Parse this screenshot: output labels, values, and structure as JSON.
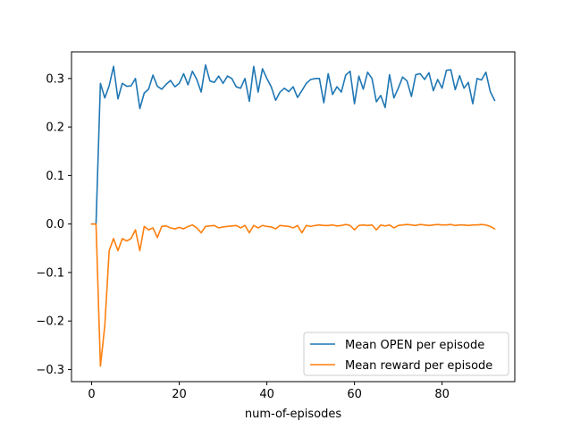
{
  "chart_data": {
    "type": "line",
    "title": "",
    "xlabel": "num-of-episodes",
    "ylabel": "",
    "xlim": [
      -4.6,
      96.6
    ],
    "ylim": [
      -0.325,
      0.355
    ],
    "xticks": [
      0,
      20,
      40,
      60,
      80
    ],
    "yticks": [
      -0.3,
      -0.2,
      -0.1,
      0.0,
      0.1,
      0.2,
      0.3
    ],
    "ytick_labels": [
      "−0.3",
      "−0.2",
      "−0.1",
      "0.0",
      "0.1",
      "0.2",
      "0.3"
    ],
    "grid": false,
    "legend_position": "lower-right",
    "series": [
      {
        "name": "Mean OPEN per episode",
        "color": "#1f77b4",
        "x": [
          0,
          1,
          2,
          3,
          4,
          5,
          6,
          7,
          8,
          9,
          10,
          11,
          12,
          13,
          14,
          15,
          16,
          17,
          18,
          19,
          20,
          21,
          22,
          23,
          24,
          25,
          26,
          27,
          28,
          29,
          30,
          31,
          32,
          33,
          34,
          35,
          36,
          37,
          38,
          39,
          40,
          41,
          42,
          43,
          44,
          45,
          46,
          47,
          48,
          49,
          50,
          51,
          52,
          53,
          54,
          55,
          56,
          57,
          58,
          59,
          60,
          61,
          62,
          63,
          64,
          65,
          66,
          67,
          68,
          69,
          70,
          71,
          72,
          73,
          74,
          75,
          76,
          77,
          78,
          79,
          80,
          81,
          82,
          83,
          84,
          85,
          86,
          87,
          88,
          89,
          90,
          91,
          92
        ],
        "values": [
          0.0,
          0.0,
          0.29,
          0.26,
          0.285,
          0.325,
          0.258,
          0.29,
          0.284,
          0.285,
          0.3,
          0.238,
          0.27,
          0.278,
          0.307,
          0.284,
          0.278,
          0.288,
          0.296,
          0.283,
          0.29,
          0.31,
          0.287,
          0.315,
          0.298,
          0.272,
          0.328,
          0.295,
          0.292,
          0.305,
          0.29,
          0.305,
          0.3,
          0.283,
          0.28,
          0.3,
          0.253,
          0.325,
          0.272,
          0.32,
          0.3,
          0.283,
          0.255,
          0.272,
          0.28,
          0.273,
          0.283,
          0.261,
          0.275,
          0.29,
          0.298,
          0.3,
          0.3,
          0.25,
          0.31,
          0.267,
          0.283,
          0.272,
          0.307,
          0.315,
          0.248,
          0.305,
          0.278,
          0.313,
          0.3,
          0.252,
          0.265,
          0.24,
          0.308,
          0.26,
          0.28,
          0.303,
          0.295,
          0.263,
          0.308,
          0.31,
          0.298,
          0.312,
          0.275,
          0.298,
          0.28,
          0.317,
          0.318,
          0.277,
          0.306,
          0.28,
          0.292,
          0.248,
          0.3,
          0.297,
          0.313,
          0.273,
          0.255
        ]
      },
      {
        "name": "Mean reward per episode",
        "color": "#ff7f0e",
        "x": [
          0,
          1,
          2,
          3,
          4,
          5,
          6,
          7,
          8,
          9,
          10,
          11,
          12,
          13,
          14,
          15,
          16,
          17,
          18,
          19,
          20,
          21,
          22,
          23,
          24,
          25,
          26,
          27,
          28,
          29,
          30,
          31,
          32,
          33,
          34,
          35,
          36,
          37,
          38,
          39,
          40,
          41,
          42,
          43,
          44,
          45,
          46,
          47,
          48,
          49,
          50,
          51,
          52,
          53,
          54,
          55,
          56,
          57,
          58,
          59,
          60,
          61,
          62,
          63,
          64,
          65,
          66,
          67,
          68,
          69,
          70,
          71,
          72,
          73,
          74,
          75,
          76,
          77,
          78,
          79,
          80,
          81,
          82,
          83,
          84,
          85,
          86,
          87,
          88,
          89,
          90,
          91,
          92
        ],
        "values": [
          0.0,
          0.0,
          -0.293,
          -0.21,
          -0.055,
          -0.03,
          -0.055,
          -0.03,
          -0.035,
          -0.03,
          -0.012,
          -0.055,
          -0.005,
          -0.012,
          -0.008,
          -0.028,
          -0.005,
          -0.004,
          -0.008,
          -0.01,
          -0.007,
          -0.01,
          -0.005,
          -0.002,
          -0.008,
          -0.018,
          -0.005,
          -0.004,
          -0.003,
          -0.008,
          -0.006,
          -0.005,
          -0.004,
          -0.003,
          -0.008,
          -0.003,
          -0.018,
          -0.003,
          -0.008,
          -0.003,
          -0.005,
          -0.006,
          -0.01,
          -0.003,
          -0.004,
          -0.005,
          -0.008,
          -0.003,
          -0.018,
          -0.003,
          -0.005,
          -0.003,
          -0.002,
          -0.003,
          -0.003,
          -0.002,
          -0.004,
          -0.003,
          -0.001,
          -0.003,
          -0.012,
          -0.003,
          -0.002,
          -0.003,
          -0.002,
          -0.012,
          -0.002,
          -0.004,
          -0.002,
          -0.008,
          -0.003,
          -0.002,
          -0.001,
          -0.002,
          -0.003,
          -0.001,
          -0.002,
          -0.003,
          -0.002,
          -0.001,
          -0.002,
          -0.002,
          -0.001,
          -0.003,
          -0.002,
          -0.002,
          -0.003,
          -0.002,
          -0.002,
          -0.001,
          -0.002,
          -0.005,
          -0.01
        ]
      }
    ]
  }
}
